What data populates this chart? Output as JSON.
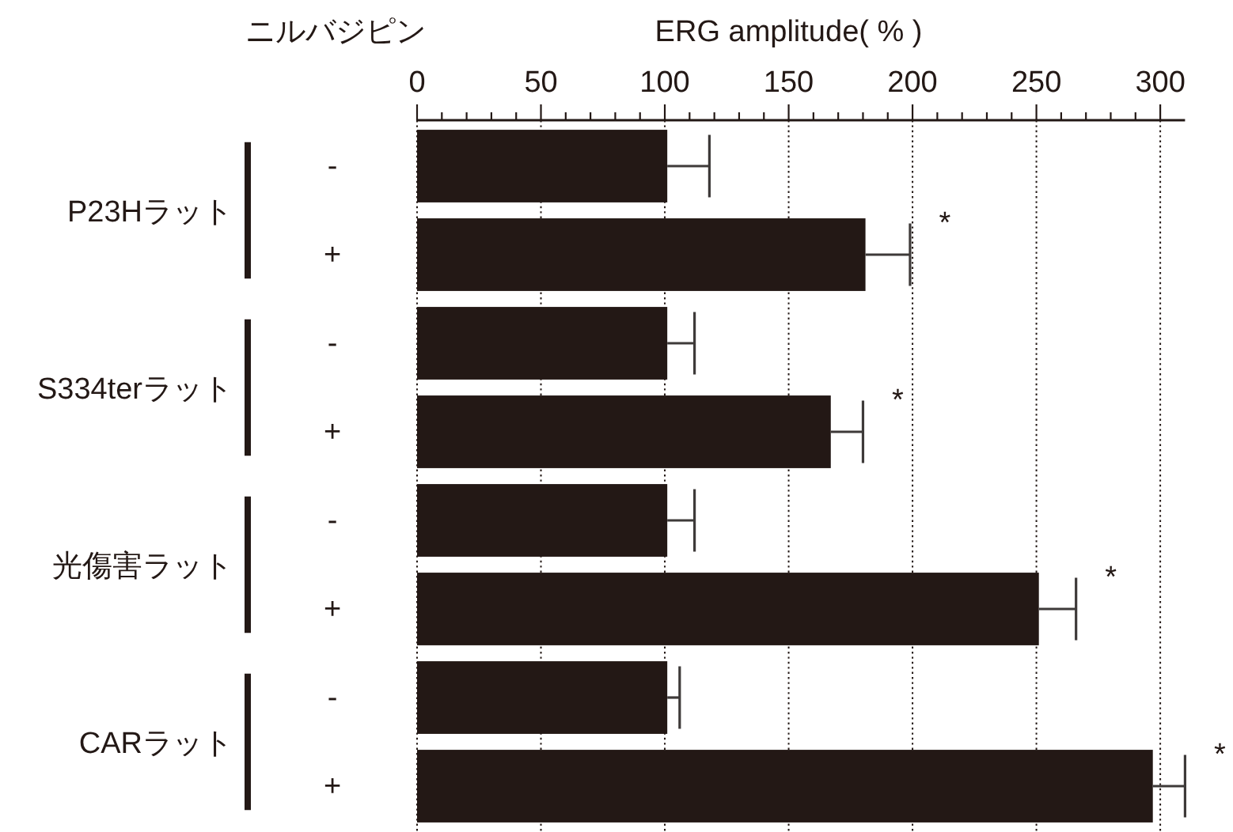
{
  "chart_data": {
    "type": "bar",
    "orientation": "horizontal",
    "xlabel": "ERG amplitude( % )",
    "legend_title": "ニルバジピン",
    "categories": [
      "P23Hラット",
      "S334terラット",
      "光傷害ラット",
      "CARラット"
    ],
    "series": [
      {
        "name": "-",
        "color": "#231815",
        "values": [
          101,
          101,
          101,
          101
        ],
        "errors": [
          [
            101,
            118
          ],
          [
            101,
            112
          ],
          [
            101,
            112
          ],
          [
            101,
            106
          ]
        ]
      },
      {
        "name": "+",
        "color": "#231815",
        "values": [
          181,
          167,
          251,
          297
        ],
        "errors": [
          [
            181,
            199
          ],
          [
            167,
            180
          ],
          [
            251,
            266
          ],
          [
            297,
            310
          ]
        ]
      }
    ],
    "xlim": [
      0,
      310
    ],
    "xticks": [
      0,
      {
        "value": 10,
        "label": null
      },
      {
        "value": 20,
        "label": null
      },
      {
        "value": 30,
        "label": null
      },
      {
        "value": 40,
        "label": null
      },
      50,
      {
        "value": 60,
        "label": null
      },
      {
        "value": 70,
        "label": null
      },
      {
        "value": 80,
        "label": null
      },
      {
        "value": 90,
        "label": null
      },
      100,
      {
        "value": 110,
        "label": null
      },
      {
        "value": 120,
        "label": null
      },
      {
        "value": 130,
        "label": null
      },
      {
        "value": 140,
        "label": null
      },
      150,
      {
        "value": 160,
        "label": null
      },
      {
        "value": 170,
        "label": null
      },
      {
        "value": 180,
        "label": null
      },
      {
        "value": 190,
        "label": null
      },
      200,
      {
        "value": 210,
        "label": null
      },
      {
        "value": 220,
        "label": null
      },
      {
        "value": 230,
        "label": null
      },
      {
        "value": 240,
        "label": null
      },
      250,
      {
        "value": 260,
        "label": null
      },
      {
        "value": 270,
        "label": null
      },
      {
        "value": 280,
        "label": null
      },
      {
        "value": 290,
        "label": null
      },
      300
    ],
    "grid": "x",
    "annotations": [
      "*",
      "*",
      "*",
      "*"
    ]
  }
}
